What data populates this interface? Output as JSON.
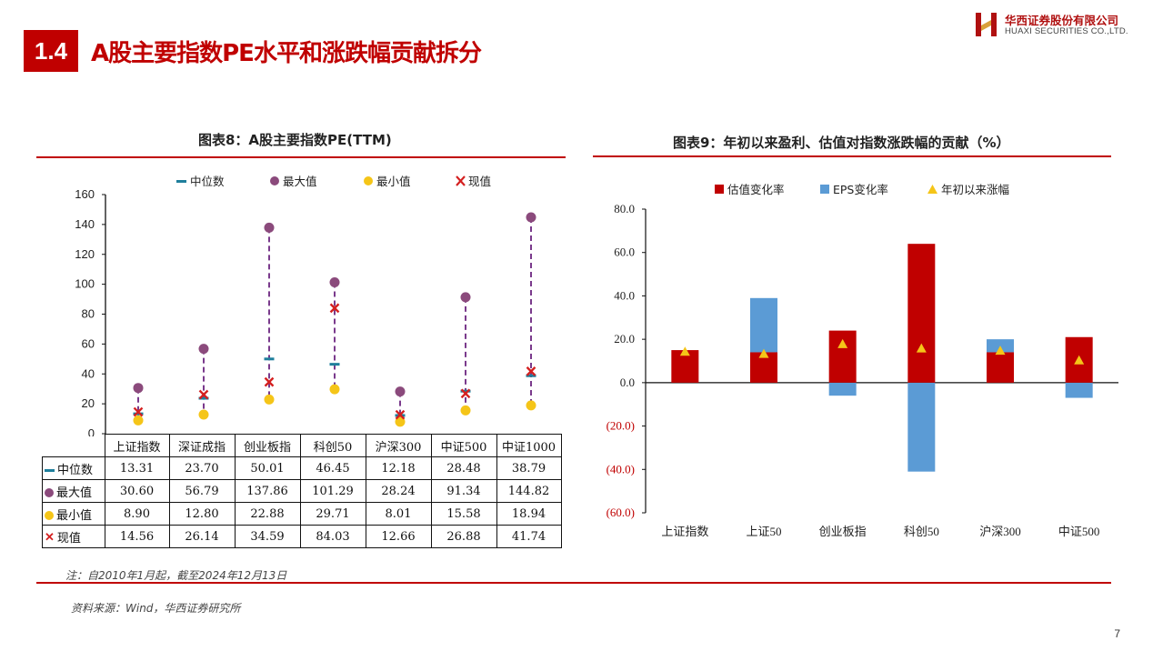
{
  "header": {
    "section_number": "1.4",
    "title": "A股主要指数PE水平和涨跌幅贡献拆分",
    "logo_cn": "华西证券股份有限公司",
    "logo_en": "HUAXI SECURITIES CO.,LTD."
  },
  "colors": {
    "brand_red": "#c00000",
    "median": "#1f7f9c",
    "max": "#8b4a7c",
    "min": "#f5c518",
    "current": "#d42020",
    "range_line": "#7a3a8c",
    "valuation": "#c00000",
    "eps": "#5b9bd5",
    "ytd": "#f5c518"
  },
  "chart8": {
    "title": "图表8：A股主要指数PE(TTM)",
    "legend": [
      "中位数",
      "最大值",
      "最小值",
      "现值"
    ],
    "table_row_labels": [
      "中位数",
      "最大值",
      "最小值",
      "现值"
    ]
  },
  "chart9": {
    "title": "图表9：年初以来盈利、估值对指数涨跌幅的贡献（%）",
    "legend": [
      "估值变化率",
      "EPS变化率",
      "年初以来涨幅"
    ]
  },
  "chart_data": [
    {
      "type": "scatter",
      "title": "图表8：A股主要指数PE(TTM)",
      "categories": [
        "上证指数",
        "深证成指",
        "创业板指",
        "科创50",
        "沪深300",
        "中证500",
        "中证1000"
      ],
      "series": [
        {
          "name": "中位数",
          "values": [
            13.31,
            23.7,
            50.01,
            46.45,
            12.18,
            28.48,
            38.79
          ]
        },
        {
          "name": "最大值",
          "values": [
            30.6,
            56.79,
            137.86,
            101.29,
            28.24,
            91.34,
            144.82
          ]
        },
        {
          "name": "最小值",
          "values": [
            8.9,
            12.8,
            22.88,
            29.71,
            8.01,
            15.58,
            18.94
          ]
        },
        {
          "name": "现值",
          "values": [
            14.56,
            26.14,
            34.59,
            84.03,
            12.66,
            26.88,
            41.74
          ]
        }
      ],
      "table_values": [
        [
          "13.31",
          "23.70",
          "50.01",
          "46.45",
          "12.18",
          "28.48",
          "38.79"
        ],
        [
          "30.60",
          "56.79",
          "137.86",
          "101.29",
          "28.24",
          "91.34",
          "144.82"
        ],
        [
          "8.90",
          "12.80",
          "22.88",
          "29.71",
          "8.01",
          "15.58",
          "18.94"
        ],
        [
          "14.56",
          "26.14",
          "34.59",
          "84.03",
          "12.66",
          "26.88",
          "41.74"
        ]
      ],
      "ylim": [
        0,
        160
      ],
      "yticks": [
        "0",
        "20",
        "40",
        "60",
        "80",
        "100",
        "120",
        "140",
        "160"
      ],
      "legend_position": "top"
    },
    {
      "type": "bar",
      "title": "图表9：年初以来盈利、估值对指数涨跌幅的贡献（%）",
      "categories": [
        "上证指数",
        "上证50",
        "创业板指",
        "科创50",
        "沪深300",
        "中证500"
      ],
      "series": [
        {
          "name": "估值变化率",
          "values": [
            15,
            14,
            24,
            64,
            14,
            21
          ]
        },
        {
          "name": "EPS变化率",
          "values": [
            0,
            25,
            -6,
            -41,
            6,
            -7
          ]
        },
        {
          "name": "年初以来涨幅",
          "values": [
            14.5,
            13.5,
            18,
            16,
            15,
            10.5
          ]
        }
      ],
      "ylim": [
        -60,
        80
      ],
      "yticks": [
        "80.0",
        "60.0",
        "40.0",
        "20.0",
        "0.0",
        "(20.0)",
        "(40.0)",
        "(60.0)"
      ],
      "legend_position": "top"
    }
  ],
  "notes": {
    "note": "注：自2010年1月起，截至2024年12月13日",
    "source": "资料来源：Wind，华西证券研究所"
  },
  "page_number": "7"
}
